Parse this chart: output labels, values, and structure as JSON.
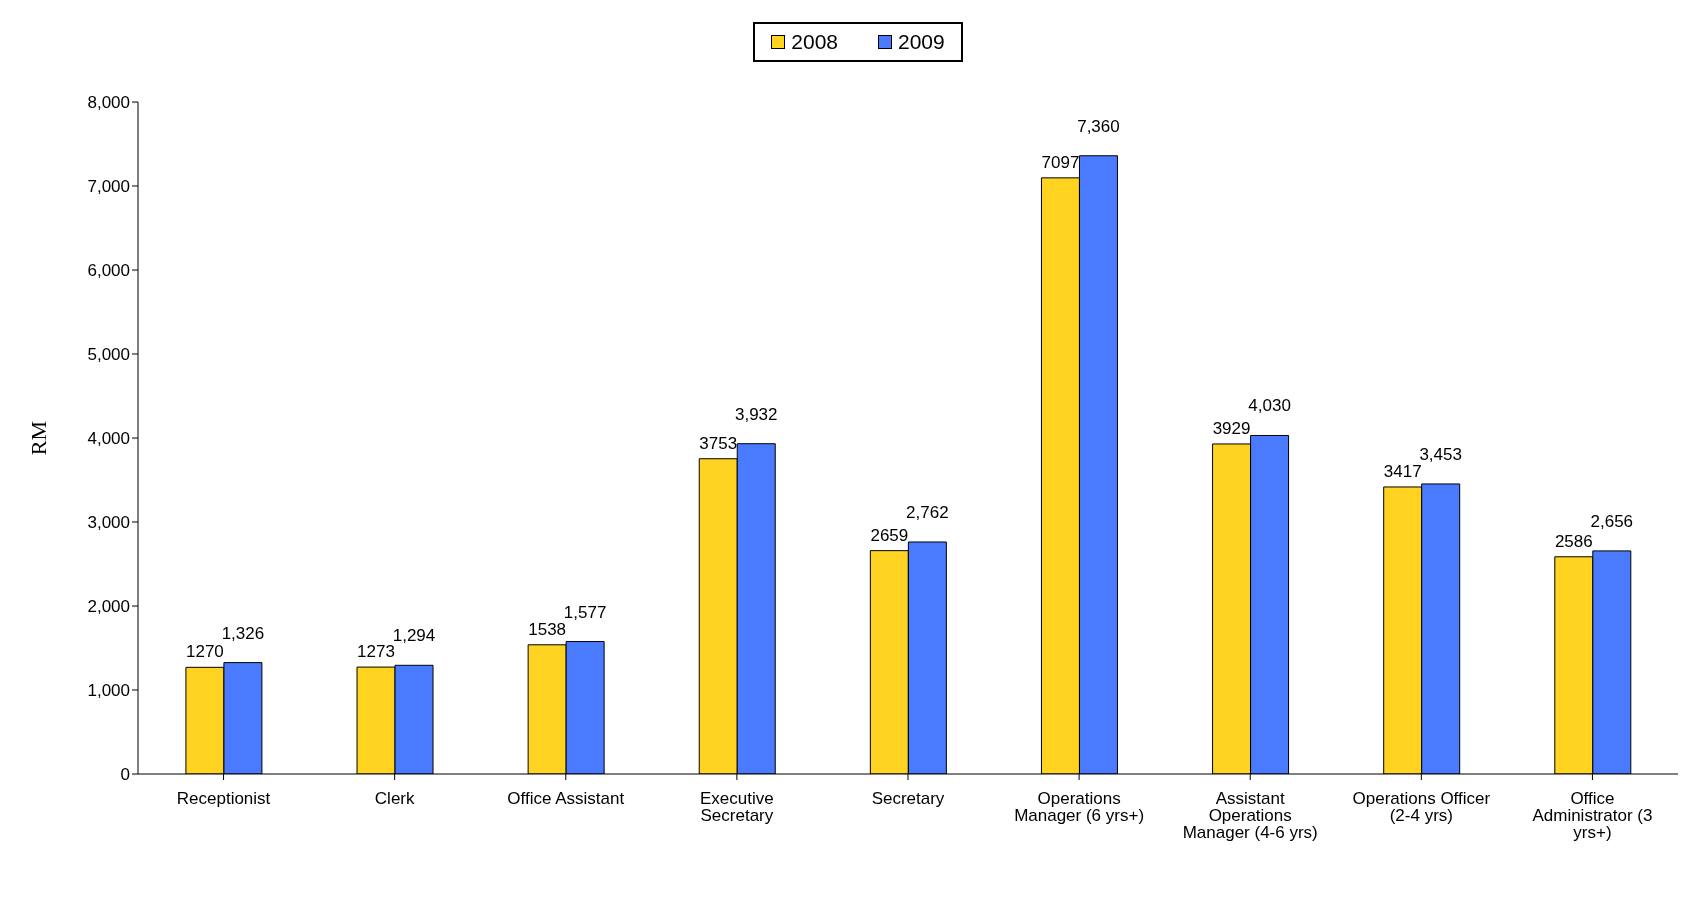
{
  "chart_data": {
    "type": "bar",
    "ylabel": "RM",
    "categories": [
      "Receptionist",
      "Clerk",
      "Office Assistant",
      "Executive Secretary",
      "Secretary",
      "Operations Manager (6 yrs+)",
      "Assistant Operations Manager (4-6 yrs)",
      "Operations Officer (2-4 yrs)",
      "Office Administrator (3 yrs+)"
    ],
    "series": [
      {
        "name": "2008",
        "color": "#ffd320",
        "values": [
          1270,
          1273,
          1538,
          3753,
          2659,
          7097,
          3929,
          3417,
          2586
        ],
        "value_labels": [
          "1270",
          "1273",
          "1538",
          "3753",
          "2659",
          "7097",
          "3929",
          "3417",
          "2586"
        ]
      },
      {
        "name": "2009",
        "color": "#4a7bff",
        "values": [
          1326,
          1294,
          1577,
          3932,
          2762,
          7360,
          4030,
          3453,
          2656
        ],
        "value_labels": [
          "1,326",
          "1,294",
          "1,577",
          "3,932",
          "2,762",
          "7,360",
          "4,030",
          "3,453",
          "2,656"
        ]
      }
    ],
    "ylim": [
      0,
      8000
    ],
    "yticks": [
      {
        "value": 0,
        "label": "0"
      },
      {
        "value": 1000,
        "label": "1,000"
      },
      {
        "value": 2000,
        "label": "2,000"
      },
      {
        "value": 3000,
        "label": "3,000"
      },
      {
        "value": 4000,
        "label": "4,000"
      },
      {
        "value": 5000,
        "label": "5,000"
      },
      {
        "value": 6000,
        "label": "6,000"
      },
      {
        "value": 7000,
        "label": "7,000"
      },
      {
        "value": 8000,
        "label": "8,000"
      }
    ],
    "grid": false,
    "legend": "top"
  }
}
